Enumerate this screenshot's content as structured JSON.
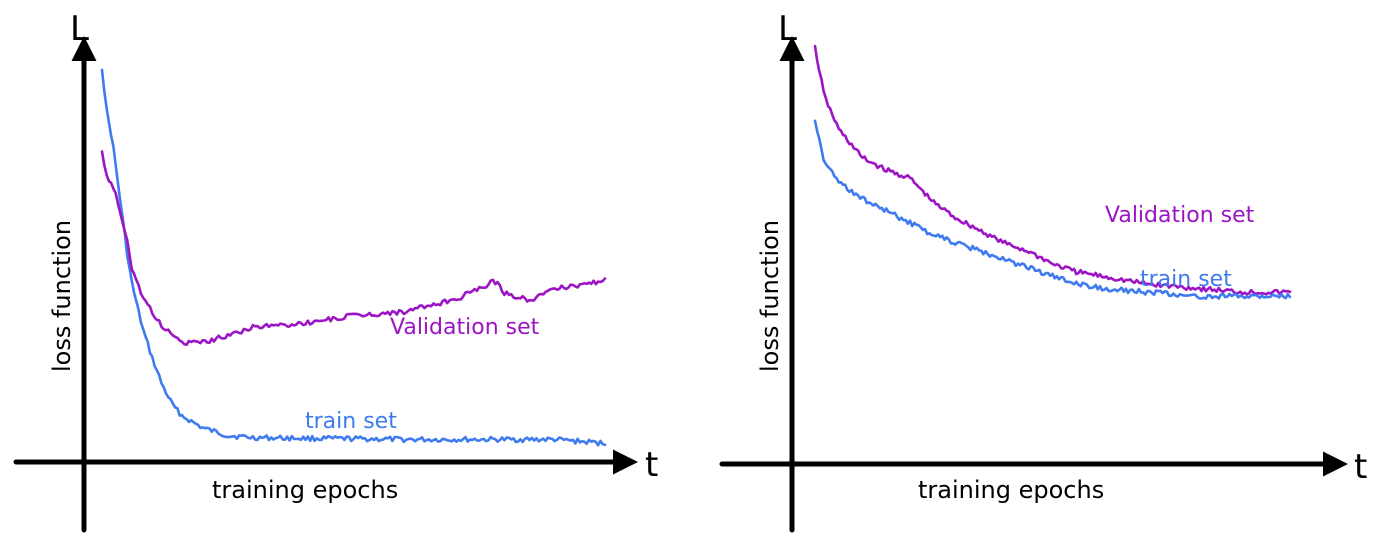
{
  "colors": {
    "axis": "#000000",
    "train": "#3f7bef",
    "validation": "#9c14c4"
  },
  "chart_data": [
    {
      "type": "line",
      "ylabel": "loss function",
      "xlabel": "training epochs",
      "y_axis_letter": "L",
      "x_axis_letter": "t",
      "series": [
        {
          "name": "train set",
          "color": "#3f7bef",
          "x": [
            0,
            1,
            2,
            3,
            4,
            5,
            6,
            8,
            10,
            12,
            14,
            16,
            20,
            25,
            30,
            40,
            50,
            60,
            70,
            80,
            90,
            95,
            100
          ],
          "y": [
            1.0,
            0.88,
            0.82,
            0.72,
            0.62,
            0.52,
            0.44,
            0.33,
            0.25,
            0.18,
            0.13,
            0.1,
            0.07,
            0.05,
            0.045,
            0.043,
            0.042,
            0.04,
            0.04,
            0.04,
            0.04,
            0.035,
            0.03
          ]
        },
        {
          "name": "Validation set",
          "color": "#9c14c4",
          "x": [
            0,
            1,
            2,
            3,
            4,
            5,
            6,
            8,
            10,
            12,
            14,
            16,
            20,
            25,
            30,
            40,
            50,
            60,
            70,
            75,
            78,
            80,
            85,
            90,
            95,
            100
          ],
          "y": [
            0.78,
            0.72,
            0.7,
            0.66,
            0.6,
            0.55,
            0.48,
            0.41,
            0.37,
            0.33,
            0.31,
            0.29,
            0.29,
            0.31,
            0.33,
            0.34,
            0.36,
            0.37,
            0.4,
            0.43,
            0.45,
            0.42,
            0.4,
            0.43,
            0.44,
            0.45
          ]
        }
      ]
    },
    {
      "type": "line",
      "ylabel": "loss function",
      "xlabel": "training epochs",
      "y_axis_letter": "L",
      "x_axis_letter": "t",
      "series": [
        {
          "name": "Validation set",
          "color": "#9c14c4",
          "x": [
            0,
            2,
            5,
            10,
            15,
            20,
            25,
            30,
            35,
            40,
            45,
            50,
            55,
            60,
            70,
            80,
            90,
            100
          ],
          "y": [
            1.0,
            0.88,
            0.8,
            0.73,
            0.7,
            0.68,
            0.62,
            0.58,
            0.55,
            0.52,
            0.5,
            0.47,
            0.45,
            0.44,
            0.42,
            0.41,
            0.4,
            0.4
          ]
        },
        {
          "name": "train set",
          "color": "#3f7bef",
          "x": [
            0,
            2,
            5,
            10,
            15,
            20,
            25,
            30,
            35,
            40,
            45,
            50,
            55,
            60,
            70,
            80,
            90,
            100
          ],
          "y": [
            0.82,
            0.72,
            0.67,
            0.63,
            0.6,
            0.57,
            0.54,
            0.52,
            0.5,
            0.48,
            0.46,
            0.44,
            0.42,
            0.41,
            0.4,
            0.39,
            0.39,
            0.39
          ]
        }
      ]
    }
  ]
}
